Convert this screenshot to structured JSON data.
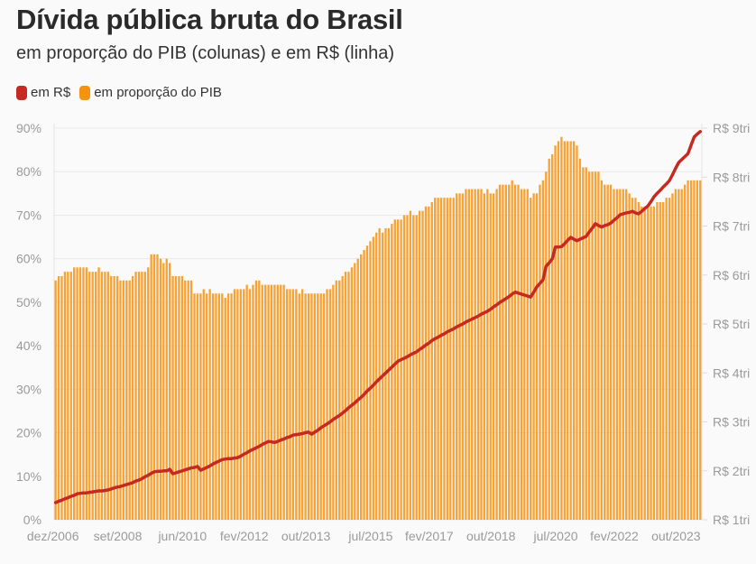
{
  "chart_data": {
    "type": "bar+line",
    "title": "Dívida pública bruta do Brasil",
    "subtitle": "em proporção do PIB (colunas) e em R$ (linha)",
    "legend": [
      {
        "label": "em R$",
        "color": "#c42a22"
      },
      {
        "label": "em proporção do PIB",
        "color": "#f5930f"
      }
    ],
    "legend_placement": "top-left",
    "grid": true,
    "x_frequency": "monthly",
    "x_tick_labels": [
      "dez/2006",
      "set/2008",
      "jun/2010",
      "fev/2012",
      "out/2013",
      "jul/2015",
      "fev/2017",
      "out/2018",
      "jul/2020",
      "fev/2022",
      "out/2023"
    ],
    "y_left": {
      "ylim": [
        0,
        90
      ],
      "ticks": [
        "0%",
        "10%",
        "20%",
        "30%",
        "40%",
        "50%",
        "60%",
        "70%",
        "80%",
        "90%"
      ]
    },
    "y_right": {
      "ylim": [
        1,
        9
      ],
      "ticks": [
        "R$ 1tri",
        "R$ 2tri",
        "R$ 3tri",
        "R$ 4tri",
        "R$ 5tri",
        "R$ 6tri",
        "R$ 7tri",
        "R$ 8tri",
        "R$ 9tri"
      ]
    },
    "series": [
      {
        "name": "em proporção do PIB",
        "type": "bar",
        "axis": "left",
        "color": "#f5a236",
        "values": [
          55,
          56,
          56,
          57,
          57,
          57,
          58,
          58,
          58,
          58,
          58,
          57,
          57,
          57,
          58,
          57,
          57,
          57,
          56,
          56,
          56,
          55,
          55,
          55,
          55,
          56,
          57,
          57,
          57,
          57,
          58,
          61,
          61,
          61,
          60,
          59,
          60,
          59,
          56,
          56,
          56,
          56,
          55,
          55,
          55,
          52,
          52,
          52,
          53,
          52,
          53,
          52,
          52,
          52,
          52,
          51,
          52,
          52,
          53,
          53,
          53,
          53,
          54,
          53,
          54,
          55,
          55,
          54,
          54,
          54,
          54,
          54,
          54,
          54,
          54,
          53,
          53,
          53,
          53,
          52,
          53,
          52,
          52,
          52,
          52,
          52,
          52,
          52,
          53,
          53,
          54,
          55,
          55,
          56,
          57,
          57,
          58,
          59,
          60,
          61,
          62,
          63,
          64,
          65,
          66,
          67,
          66,
          67,
          67,
          68,
          69,
          69,
          69,
          70,
          70,
          71,
          70,
          70,
          71,
          71,
          72,
          72,
          73,
          74,
          74,
          74,
          74,
          74,
          74,
          74,
          75,
          75,
          75,
          76,
          76,
          76,
          76,
          76,
          76,
          75,
          76,
          75,
          75,
          76,
          77,
          77,
          77,
          77,
          78,
          77,
          77,
          76,
          76,
          76,
          74,
          75,
          75,
          77,
          78,
          80,
          83,
          84,
          86,
          87,
          88,
          87,
          87,
          87,
          87,
          86,
          83,
          81,
          81,
          80,
          80,
          80,
          80,
          78,
          77,
          77,
          77,
          76,
          76,
          76,
          76,
          76,
          75,
          74,
          74,
          73,
          72,
          72,
          72,
          72,
          72,
          73,
          73,
          73,
          74,
          74,
          75,
          76,
          76,
          76,
          77,
          78,
          78,
          78,
          78,
          78
        ]
      },
      {
        "name": "em R$",
        "type": "line",
        "axis": "right",
        "color": "#c42a22",
        "values": [
          1.35,
          1.38,
          1.4,
          1.43,
          1.45,
          1.48,
          1.5,
          1.53,
          1.54,
          1.55,
          1.55,
          1.56,
          1.57,
          1.58,
          1.59,
          1.59,
          1.6,
          1.61,
          1.63,
          1.65,
          1.67,
          1.68,
          1.7,
          1.72,
          1.74,
          1.76,
          1.79,
          1.81,
          1.84,
          1.88,
          1.91,
          1.95,
          1.98,
          1.99,
          1.99,
          2.0,
          2.0,
          2.03,
          1.94,
          1.96,
          1.98,
          2.0,
          2.02,
          2.04,
          2.06,
          2.07,
          2.09,
          2.01,
          2.04,
          2.07,
          2.1,
          2.14,
          2.17,
          2.2,
          2.23,
          2.24,
          2.25,
          2.25,
          2.26,
          2.27,
          2.3,
          2.34,
          2.37,
          2.41,
          2.44,
          2.47,
          2.5,
          2.54,
          2.57,
          2.6,
          2.59,
          2.58,
          2.6,
          2.63,
          2.65,
          2.68,
          2.7,
          2.73,
          2.74,
          2.75,
          2.76,
          2.78,
          2.79,
          2.75,
          2.79,
          2.83,
          2.88,
          2.92,
          2.96,
          3.0,
          3.05,
          3.09,
          3.13,
          3.18,
          3.23,
          3.29,
          3.34,
          3.39,
          3.45,
          3.5,
          3.56,
          3.63,
          3.69,
          3.75,
          3.82,
          3.88,
          3.94,
          4.0,
          4.06,
          4.12,
          4.18,
          4.24,
          4.27,
          4.3,
          4.33,
          4.37,
          4.4,
          4.43,
          4.48,
          4.52,
          4.57,
          4.61,
          4.66,
          4.7,
          4.73,
          4.77,
          4.8,
          4.84,
          4.87,
          4.9,
          4.94,
          4.97,
          5.0,
          5.04,
          5.07,
          5.1,
          5.13,
          5.16,
          5.2,
          5.23,
          5.26,
          5.3,
          5.35,
          5.39,
          5.44,
          5.48,
          5.52,
          5.56,
          5.61,
          5.65,
          5.63,
          5.61,
          5.59,
          5.57,
          5.55,
          5.65,
          5.76,
          5.83,
          5.9,
          6.18,
          6.25,
          6.33,
          6.57,
          6.57,
          6.58,
          6.64,
          6.71,
          6.77,
          6.73,
          6.7,
          6.73,
          6.76,
          6.79,
          6.88,
          6.96,
          7.05,
          7.01,
          6.98,
          7.01,
          7.03,
          7.06,
          7.12,
          7.17,
          7.23,
          7.25,
          7.27,
          7.28,
          7.3,
          7.27,
          7.25,
          7.3,
          7.36,
          7.41,
          7.5,
          7.6,
          7.67,
          7.73,
          7.8,
          7.86,
          7.93,
          8.05,
          8.18,
          8.3,
          8.36,
          8.42,
          8.48,
          8.65,
          8.82,
          8.88,
          8.93
        ]
      }
    ]
  }
}
